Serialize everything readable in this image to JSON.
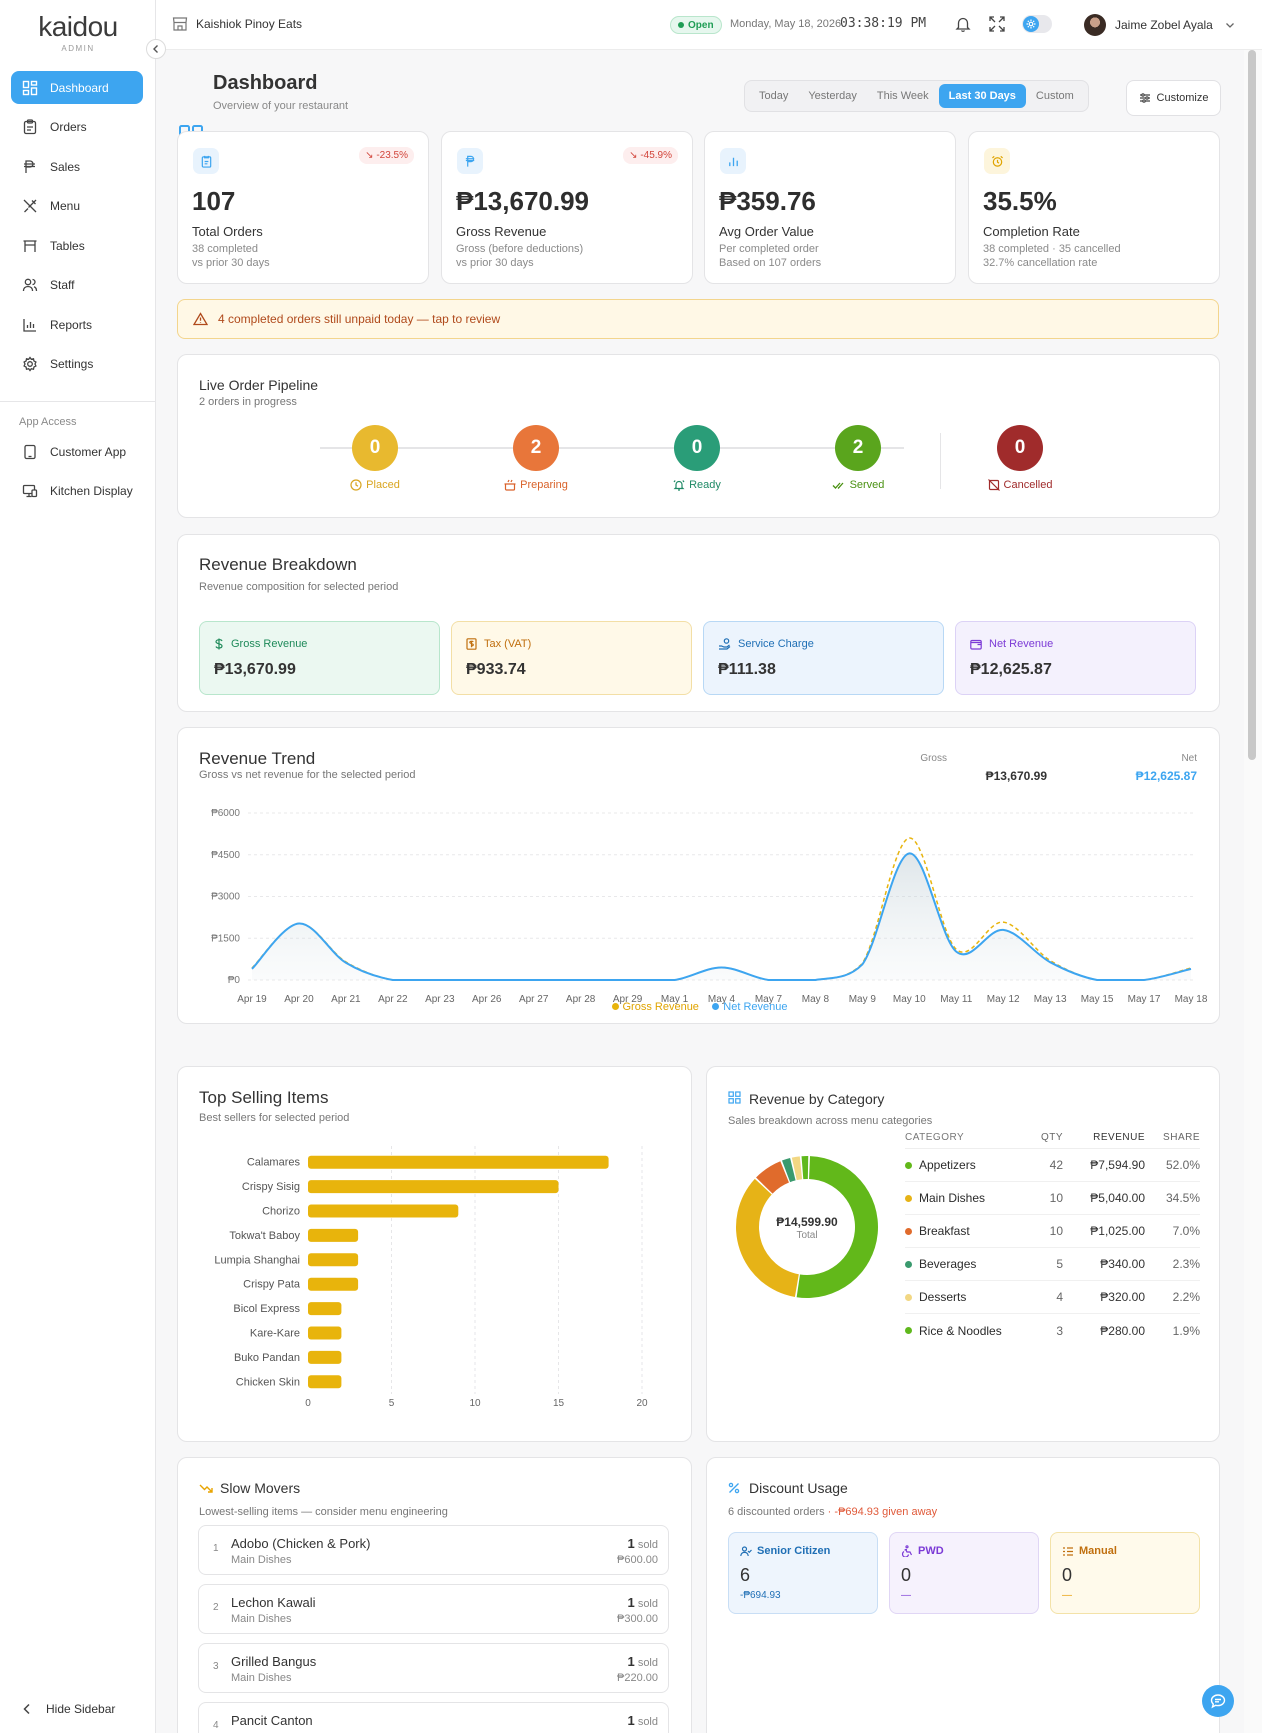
{
  "brand": {
    "name": "kaidou",
    "role": "ADMIN"
  },
  "sidebar": {
    "items": [
      {
        "label": "Dashboard",
        "icon": "dashboard-icon"
      },
      {
        "label": "Orders",
        "icon": "clipboard-icon"
      },
      {
        "label": "Sales",
        "icon": "peso-icon"
      },
      {
        "label": "Menu",
        "icon": "utensils-icon"
      },
      {
        "label": "Tables",
        "icon": "table-icon"
      },
      {
        "label": "Staff",
        "icon": "users-icon"
      },
      {
        "label": "Reports",
        "icon": "bar-chart-icon"
      },
      {
        "label": "Settings",
        "icon": "gear-icon"
      }
    ],
    "app_access_title": "App Access",
    "app_items": [
      {
        "label": "Customer App",
        "icon": "tablet-icon"
      },
      {
        "label": "Kitchen Display",
        "icon": "monitor-icon"
      }
    ],
    "hide_label": "Hide Sidebar"
  },
  "topbar": {
    "store_name": "Kaishiok Pinoy Eats",
    "status": "Open",
    "date": "Monday, May 18, 2026",
    "time": "03:38:19 PM",
    "user_name": "Jaime Zobel Ayala"
  },
  "page": {
    "title": "Dashboard",
    "subtitle": "Overview of your restaurant",
    "periods": [
      "Today",
      "Yesterday",
      "This Week",
      "Last 30 Days",
      "Custom"
    ],
    "active_period": "Last 30 Days",
    "customize_label": "Customize"
  },
  "stats": [
    {
      "value": "107",
      "label": "Total Orders",
      "sub1": "38 completed",
      "sub2": "vs prior 30 days",
      "trend": "-23.5%",
      "icon": "clipboard-icon"
    },
    {
      "value": "₱13,670.99",
      "label": "Gross Revenue",
      "sub1": "Gross (before deductions)",
      "sub2": "vs prior 30 days",
      "trend": "-45.9%",
      "icon": "peso-icon"
    },
    {
      "value": "₱359.76",
      "label": "Avg Order Value",
      "sub1": "Per completed order",
      "sub2": "Based on 107 orders",
      "icon": "bar-chart-icon"
    },
    {
      "value": "35.5%",
      "label": "Completion Rate",
      "sub1": "38 completed · 35 cancelled",
      "sub2": "32.7% cancellation rate",
      "icon": "alarm-icon"
    }
  ],
  "alert": {
    "text": "4 completed orders still unpaid today — tap to review"
  },
  "pipeline": {
    "title": "Live Order Pipeline",
    "subtitle": "2 orders in progress",
    "steps": [
      {
        "label": "Placed",
        "count": "0",
        "color": "#e8b92f",
        "text_color": "#d9a520"
      },
      {
        "label": "Preparing",
        "count": "2",
        "color": "#e8763a",
        "text_color": "#d9622a"
      },
      {
        "label": "Ready",
        "count": "0",
        "color": "#2a9d78",
        "text_color": "#1f8a66"
      },
      {
        "label": "Served",
        "count": "2",
        "color": "#5aa51d",
        "text_color": "#4a9112"
      },
      {
        "label": "Cancelled",
        "count": "0",
        "color": "#a02b2b",
        "text_color": "#a02b2b"
      }
    ]
  },
  "revenue_breakdown": {
    "title": "Revenue Breakdown",
    "subtitle": "Revenue composition for selected period",
    "items": [
      {
        "label": "Gross Revenue",
        "value": "₱13,670.99"
      },
      {
        "label": "Tax (VAT)",
        "value": "₱933.74"
      },
      {
        "label": "Service Charge",
        "value": "₱111.38"
      },
      {
        "label": "Net Revenue",
        "value": "₱12,625.87"
      }
    ]
  },
  "revenue_trend": {
    "title": "Revenue Trend",
    "subtitle": "Gross vs net revenue for the selected period",
    "gross_label": "Gross",
    "gross_value": "₱13,670.99",
    "net_label": "Net",
    "net_value": "₱12,625.87",
    "chart_data": {
      "type": "line",
      "x": [
        "Apr 19",
        "Apr 20",
        "Apr 21",
        "Apr 22",
        "Apr 23",
        "Apr 26",
        "Apr 27",
        "Apr 28",
        "Apr 29",
        "May 1",
        "May 4",
        "May 7",
        "May 8",
        "May 9",
        "May 10",
        "May 11",
        "May 12",
        "May 13",
        "May 15",
        "May 17",
        "May 18"
      ],
      "series": [
        {
          "name": "Gross Revenue",
          "color": "#e8b40c",
          "values": [
            430,
            2030,
            650,
            0,
            0,
            0,
            0,
            0,
            0,
            0,
            450,
            0,
            0,
            600,
            5100,
            1100,
            2080,
            700,
            0,
            0,
            430
          ]
        },
        {
          "name": "Net Revenue",
          "color": "#3da5f0",
          "values": [
            400,
            2030,
            620,
            0,
            0,
            0,
            0,
            0,
            0,
            0,
            450,
            0,
            0,
            560,
            4550,
            1020,
            1800,
            640,
            0,
            0,
            400
          ]
        }
      ],
      "yticks": [
        "₱0",
        "₱1500",
        "₱3000",
        "₱4500",
        "₱6000"
      ],
      "ylim": [
        0,
        6000
      ],
      "legend": "bottom-center"
    }
  },
  "top_selling": {
    "title": "Top Selling Items",
    "subtitle": "Best sellers for selected period",
    "chart_data": {
      "type": "bar",
      "orientation": "horizontal",
      "categories": [
        "Calamares",
        "Crispy Sisig",
        "Chorizo",
        "Tokwa't Baboy",
        "Lumpia Shanghai",
        "Crispy Pata",
        "Bicol Express",
        "Kare-Kare",
        "Buko Pandan",
        "Chicken Skin"
      ],
      "values": [
        18,
        15,
        9,
        3,
        3,
        3,
        2,
        2,
        2,
        2
      ],
      "xticks": [
        "0",
        "5",
        "10",
        "15",
        "20"
      ],
      "xlim": [
        0,
        20
      ],
      "color": "#e8b40c"
    }
  },
  "revenue_by_category": {
    "title": "Revenue by Category",
    "subtitle": "Sales breakdown across menu categories",
    "center_value": "₱14,599.90",
    "center_label": "Total",
    "headers": {
      "category": "CATEGORY",
      "qty": "QTY",
      "revenue": "REVENUE",
      "share": "SHARE"
    },
    "rows": [
      {
        "name": "Appetizers",
        "qty": "42",
        "revenue": "₱7,594.90",
        "share": "52.0%",
        "color": "#62b81a"
      },
      {
        "name": "Main Dishes",
        "qty": "10",
        "revenue": "₱5,040.00",
        "share": "34.5%",
        "color": "#e6b317"
      },
      {
        "name": "Breakfast",
        "qty": "10",
        "revenue": "₱1,025.00",
        "share": "7.0%",
        "color": "#e06b2c"
      },
      {
        "name": "Beverages",
        "qty": "5",
        "revenue": "₱340.00",
        "share": "2.3%",
        "color": "#3a9a6e"
      },
      {
        "name": "Desserts",
        "qty": "4",
        "revenue": "₱320.00",
        "share": "2.2%",
        "color": "#f2d783"
      },
      {
        "name": "Rice & Noodles",
        "qty": "3",
        "revenue": "₱280.00",
        "share": "1.9%",
        "color": "#5fb81c"
      }
    ],
    "chart_data": {
      "type": "pie",
      "categories": [
        "Appetizers",
        "Main Dishes",
        "Breakfast",
        "Beverages",
        "Desserts",
        "Rice & Noodles"
      ],
      "values": [
        52.0,
        34.5,
        7.0,
        2.3,
        2.2,
        1.9
      ]
    }
  },
  "slow_movers": {
    "title": "Slow Movers",
    "subtitle": "Lowest-selling items — consider menu engineering",
    "sold_suffix": "sold",
    "items": [
      {
        "rank": "1",
        "name": "Adobo (Chicken & Pork)",
        "category": "Main Dishes",
        "sold": "1",
        "amount": "₱600.00"
      },
      {
        "rank": "2",
        "name": "Lechon Kawali",
        "category": "Main Dishes",
        "sold": "1",
        "amount": "₱300.00"
      },
      {
        "rank": "3",
        "name": "Grilled Bangus",
        "category": "Main Dishes",
        "sold": "1",
        "amount": "₱220.00"
      },
      {
        "rank": "4",
        "name": "Pancit Canton",
        "category": "",
        "sold": "1",
        "amount": ""
      }
    ]
  },
  "discount_usage": {
    "title": "Discount Usage",
    "subtitle_count": "6 discounted orders",
    "subtitle_amount": " · -₱694.93 given away",
    "items": [
      {
        "label": "Senior Citizen",
        "count": "6",
        "amount": "-₱694.93"
      },
      {
        "label": "PWD",
        "count": "0",
        "amount": "—"
      },
      {
        "label": "Manual",
        "count": "0",
        "amount": "—"
      }
    ]
  }
}
